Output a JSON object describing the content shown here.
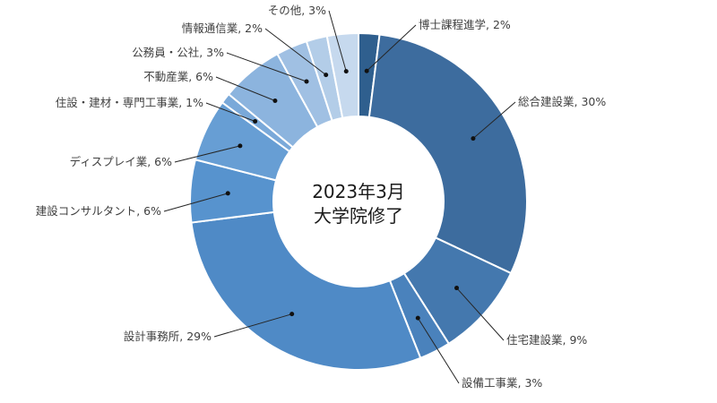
{
  "chart_data": {
    "type": "pie",
    "variant": "donut",
    "center_label": [
      "2023年3月",
      "大学院修了"
    ],
    "slices": [
      {
        "label": "博士課程進学, 2%",
        "value": 2,
        "color": "#2f5f8e"
      },
      {
        "label": "総合建設業, 30%",
        "value": 30,
        "color": "#3d6c9e"
      },
      {
        "label": "住宅建設業, 9%",
        "value": 9,
        "color": "#4478ae"
      },
      {
        "label": "設備工事業, 3%",
        "value": 3,
        "color": "#4a82bc"
      },
      {
        "label": "設計事務所, 29%",
        "value": 29,
        "color": "#4f8ac6"
      },
      {
        "label": "建設コンサルタント, 6%",
        "value": 6,
        "color": "#5793ce"
      },
      {
        "label": "ディスプレイ業, 6%",
        "value": 6,
        "color": "#679ed4"
      },
      {
        "label": "住設・建材・専門工事業, 1%",
        "value": 1,
        "color": "#7aa9d9"
      },
      {
        "label": "不動産業, 6%",
        "value": 6,
        "color": "#8cb4de"
      },
      {
        "label": "公務員・公社, 3%",
        "value": 3,
        "color": "#a0c0e3"
      },
      {
        "label": "情報通信業, 2%",
        "value": 2,
        "color": "#b3cde8"
      },
      {
        "label": "その他, 3%",
        "value": 3,
        "color": "#c6d9ee"
      }
    ],
    "legend": "none"
  }
}
